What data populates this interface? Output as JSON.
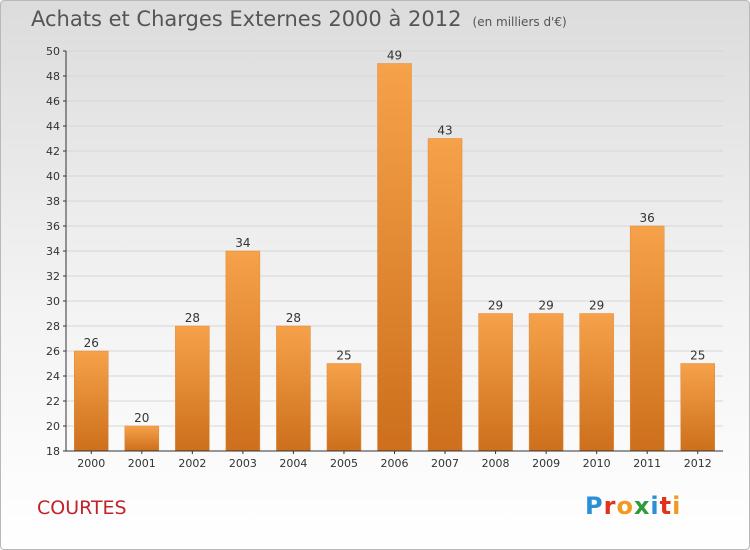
{
  "title": "Achats et Charges Externes 2000 à 2012",
  "subtitle": "(en milliers d'€)",
  "town": "COURTES",
  "brand": {
    "text": "Proxiti",
    "letter_colors": [
      "#2b8fd6",
      "#e0331c",
      "#f29a1f",
      "#2f9b3a",
      "#2b8fd6",
      "#e0331c",
      "#f29a1f"
    ]
  },
  "colors": {
    "bar_light": "#f6a24a",
    "bar_dark": "#cd6f1c",
    "axis": "#333333",
    "grid": "#d6d6d6",
    "town": "#c0242a"
  },
  "chart_data": {
    "type": "bar",
    "title": "Achats et Charges Externes 2000 à 2012",
    "subtitle": "(en milliers d'€)",
    "categories": [
      "2000",
      "2001",
      "2002",
      "2003",
      "2004",
      "2005",
      "2006",
      "2007",
      "2008",
      "2009",
      "2010",
      "2011",
      "2012"
    ],
    "values": [
      26,
      20,
      28,
      34,
      28,
      25,
      49,
      43,
      29,
      29,
      29,
      36,
      25
    ],
    "ylim": [
      18,
      50
    ],
    "yticks": [
      18,
      20,
      22,
      24,
      26,
      28,
      30,
      32,
      34,
      36,
      38,
      40,
      42,
      44,
      46,
      48,
      50
    ],
    "grid": true,
    "data_labels": true
  }
}
